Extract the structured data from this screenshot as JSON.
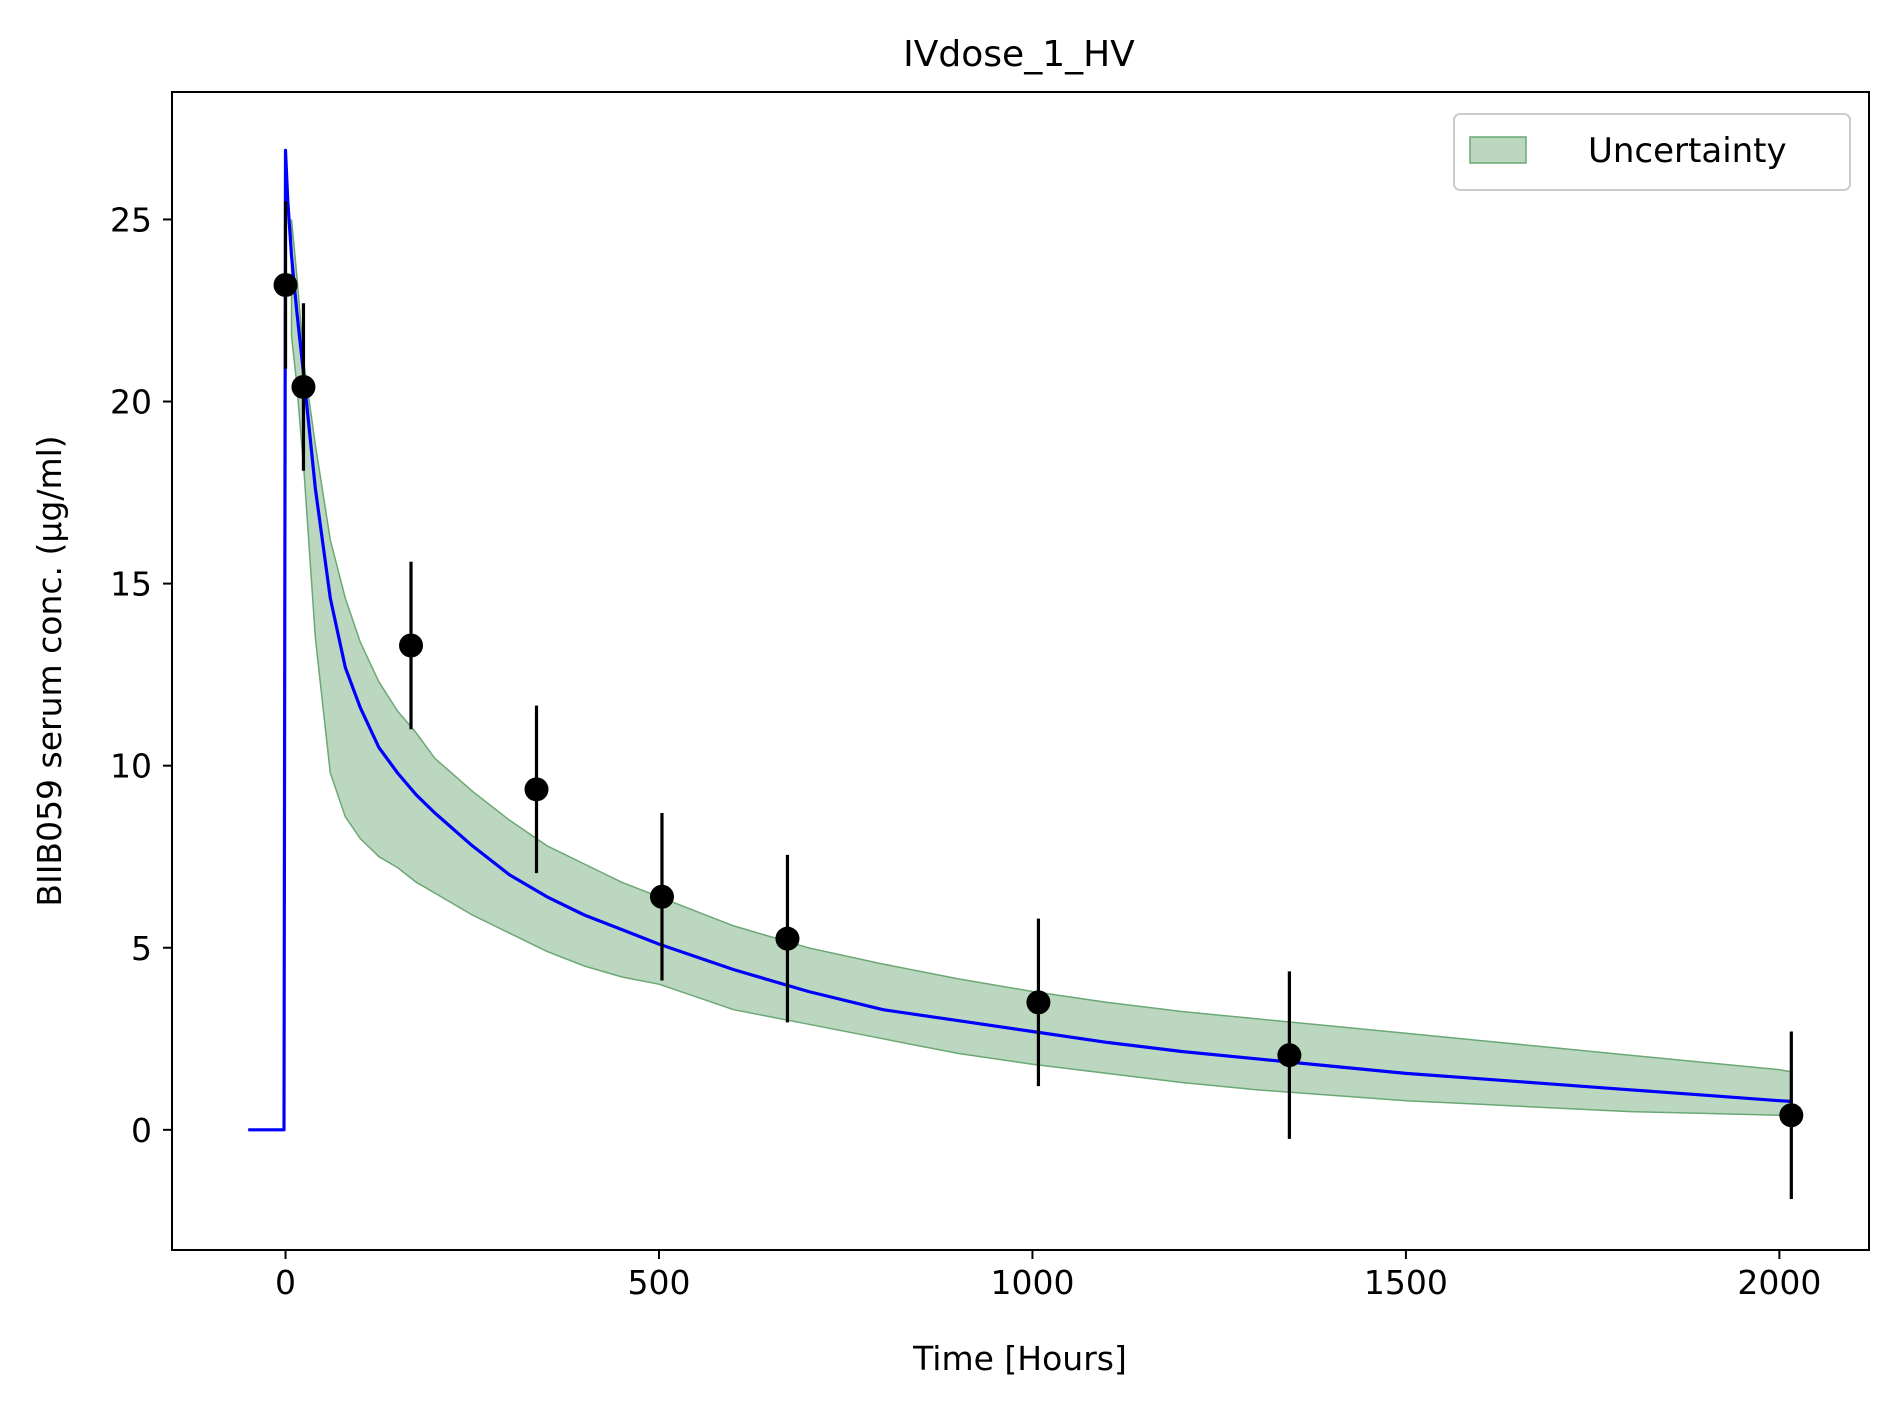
{
  "chart_data": {
    "type": "line",
    "title": "IVdose_1_HV",
    "xlabel": "Time [Hours]",
    "ylabel": "BIIB059 serum conc. (μg/ml)",
    "xlim": [
      -152,
      2120
    ],
    "ylim": [
      -3.3,
      28.5
    ],
    "xticks": [
      0,
      500,
      1000,
      1500,
      2000
    ],
    "xtick_labels": [
      "0",
      "500",
      "1000",
      "1500",
      "2000"
    ],
    "yticks": [
      0,
      5,
      10,
      15,
      20,
      25
    ],
    "ytick_labels": [
      "0",
      "5",
      "10",
      "15",
      "20",
      "25"
    ],
    "grid": false,
    "legend": {
      "position": "top-right",
      "entries": [
        "Uncertainty"
      ]
    },
    "colors": {
      "model": "#0000ff",
      "band_fill": "#8fbc95",
      "band_edge": "#6aa874",
      "observed": "#000000"
    },
    "model_curve": {
      "x": [
        -50,
        -2,
        0,
        3,
        8,
        15,
        25,
        40,
        60,
        80,
        100,
        125,
        150,
        175,
        200,
        250,
        300,
        350,
        400,
        450,
        500,
        600,
        700,
        800,
        900,
        1000,
        1100,
        1200,
        1300,
        1400,
        1500,
        1600,
        1700,
        1800,
        1900,
        2000,
        2015
      ],
      "y": [
        0,
        0,
        26.9,
        25.5,
        24.0,
        22.5,
        20.6,
        17.6,
        14.6,
        12.7,
        11.6,
        10.5,
        9.8,
        9.2,
        8.7,
        7.8,
        7.0,
        6.4,
        5.9,
        5.5,
        5.1,
        4.4,
        3.8,
        3.3,
        3.0,
        2.7,
        2.4,
        2.15,
        1.95,
        1.75,
        1.55,
        1.4,
        1.25,
        1.1,
        0.95,
        0.8,
        0.78
      ]
    },
    "uncertainty_band": {
      "x": [
        8,
        15,
        25,
        40,
        60,
        80,
        100,
        125,
        150,
        175,
        200,
        250,
        300,
        350,
        400,
        450,
        500,
        600,
        700,
        800,
        900,
        1000,
        1100,
        1200,
        1300,
        1400,
        1500,
        1600,
        1700,
        1800,
        1900,
        2000,
        2015
      ],
      "lower": [
        21.8,
        20.5,
        18.0,
        13.5,
        9.8,
        8.6,
        8.0,
        7.5,
        7.2,
        6.8,
        6.5,
        5.9,
        5.4,
        4.9,
        4.5,
        4.2,
        4.0,
        3.3,
        2.9,
        2.5,
        2.1,
        1.8,
        1.55,
        1.3,
        1.1,
        0.95,
        0.8,
        0.7,
        0.6,
        0.5,
        0.45,
        0.4,
        0.38
      ],
      "upper": [
        25.0,
        23.5,
        21.0,
        18.8,
        16.2,
        14.6,
        13.4,
        12.3,
        11.5,
        10.9,
        10.2,
        9.3,
        8.5,
        7.8,
        7.3,
        6.8,
        6.4,
        5.6,
        5.0,
        4.55,
        4.15,
        3.8,
        3.5,
        3.25,
        3.05,
        2.85,
        2.65,
        2.45,
        2.25,
        2.05,
        1.85,
        1.65,
        1.6
      ]
    },
    "observed": {
      "x": [
        0,
        24,
        168,
        336,
        504,
        672,
        1008,
        1344,
        2016
      ],
      "y": [
        23.2,
        20.4,
        13.3,
        9.35,
        6.4,
        5.25,
        3.5,
        2.05,
        0.4
      ],
      "err_low": [
        20.9,
        18.1,
        11.0,
        7.05,
        4.1,
        2.95,
        1.2,
        -0.25,
        -1.9
      ],
      "err_high": [
        25.5,
        22.7,
        15.6,
        11.65,
        8.7,
        7.55,
        5.8,
        4.35,
        2.7
      ]
    }
  }
}
